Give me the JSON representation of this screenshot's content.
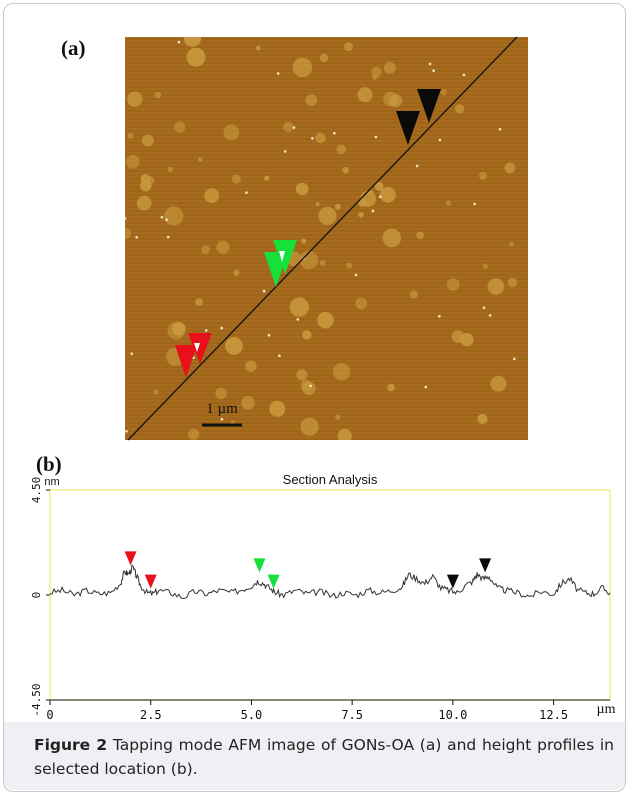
{
  "panel_a": {
    "label": "(a)",
    "scale_bar_label": "1 µm",
    "colors": {
      "background": "#a56a1c",
      "grain": "#c99a3e",
      "line": "#111111",
      "red_marker": "#e8101a",
      "green_marker": "#16e03a",
      "black_marker": "#0a0a0a"
    }
  },
  "panel_b": {
    "label": "(b)"
  },
  "chart_data": {
    "type": "line",
    "title": "Section Analysis",
    "xlabel": "µm",
    "ylabel": "nm",
    "xlim": [
      0,
      13.9
    ],
    "ylim": [
      -4.5,
      4.5
    ],
    "x_ticks": [
      0,
      2.5,
      5.0,
      7.5,
      10.0,
      12.5
    ],
    "x_tick_labels": [
      "0",
      "2.5",
      "5.0",
      "7.5",
      "10.0",
      "12.5"
    ],
    "y_ticks": [
      4.5,
      0,
      -4.5
    ],
    "y_tick_labels": [
      "4.50",
      "0",
      "-4.50"
    ],
    "grid": false,
    "series": [
      {
        "x": [
          0,
          0.3,
          0.6,
          0.9,
          1.2,
          1.5,
          1.75,
          1.85,
          1.95,
          2.05,
          2.15,
          2.25,
          2.4,
          2.55,
          2.7,
          3.0,
          3.3,
          3.6,
          3.9,
          4.2,
          4.5,
          4.8,
          5.0,
          5.15,
          5.3,
          5.45,
          5.6,
          5.8,
          6.1,
          6.4,
          6.7,
          7.0,
          7.3,
          7.6,
          7.9,
          8.2,
          8.5,
          8.75,
          8.9,
          9.1,
          9.3,
          9.5,
          9.7,
          9.9,
          10.1,
          10.3,
          10.5,
          10.6,
          10.75,
          10.9,
          11.1,
          11.3,
          11.6,
          11.9,
          12.2,
          12.5,
          12.7,
          12.9,
          13.1,
          13.3,
          13.5,
          13.7,
          13.9
        ],
        "y": [
          0.1,
          0.2,
          0.0,
          0.2,
          0.05,
          0.1,
          0.5,
          1.0,
          0.9,
          1.2,
          0.8,
          0.4,
          0.1,
          0.05,
          0.2,
          0.1,
          -0.1,
          0.15,
          0.05,
          0.2,
          0.1,
          0.25,
          0.4,
          0.6,
          0.5,
          0.3,
          0.1,
          0.0,
          0.2,
          0.05,
          0.15,
          -0.05,
          0.1,
          0.0,
          0.2,
          0.1,
          0.2,
          0.35,
          0.9,
          0.7,
          0.5,
          0.8,
          0.3,
          0.2,
          0.1,
          0.4,
          0.6,
          0.9,
          0.7,
          0.8,
          0.3,
          0.2,
          0.1,
          -0.05,
          0.15,
          0.05,
          0.5,
          0.7,
          0.2,
          0.1,
          0.05,
          0.3,
          0.1
        ]
      }
    ],
    "markers": [
      {
        "x": 2.0,
        "y": 1.1,
        "color": "red"
      },
      {
        "x": 2.5,
        "y": 0.1,
        "color": "red"
      },
      {
        "x": 5.2,
        "y": 0.8,
        "color": "green"
      },
      {
        "x": 5.55,
        "y": 0.1,
        "color": "green"
      },
      {
        "x": 10.0,
        "y": 0.1,
        "color": "black"
      },
      {
        "x": 10.8,
        "y": 0.8,
        "color": "black"
      }
    ],
    "marker_colors": {
      "red": "#e8101a",
      "green": "#16e03a",
      "black": "#0a0a0a"
    },
    "colors": {
      "plot_border": "#e8e870",
      "trace": "#333333"
    }
  },
  "caption": {
    "lead": "Figure 2",
    "text": " Tapping mode AFM image of GONs-OA (a) and height profiles in selected location (b)."
  }
}
